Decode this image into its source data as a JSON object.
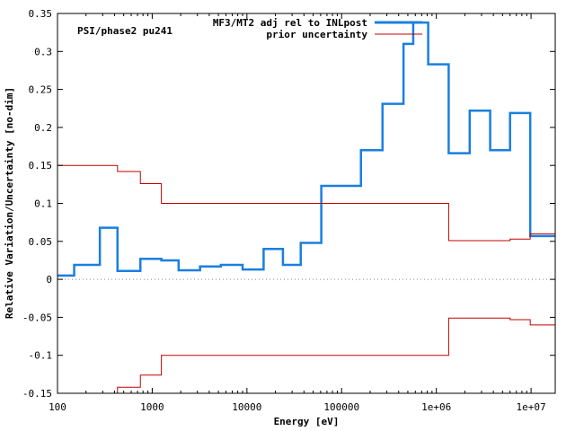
{
  "chart_data": {
    "type": "line",
    "title": "",
    "annotation": "PSI/phase2 pu241",
    "xlabel": "Energy [eV]",
    "ylabel": "Relative Variation/Uncertainty [no-dim]",
    "xscale": "log",
    "xlim": [
      100,
      18000000
    ],
    "ylim": [
      -0.15,
      0.35
    ],
    "grid": false,
    "zero_line": "dotted",
    "legend_position": "top-right",
    "x_ticks": [
      {
        "value": 100,
        "label": "100"
      },
      {
        "value": 1000,
        "label": "1000"
      },
      {
        "value": 10000,
        "label": "10000"
      },
      {
        "value": 100000,
        "label": "100000"
      },
      {
        "value": 1000000,
        "label": "1e+06"
      },
      {
        "value": 10000000,
        "label": "1e+07"
      }
    ],
    "y_ticks": [
      {
        "value": 0.35,
        "label": "0.35"
      },
      {
        "value": 0.3,
        "label": "0.3"
      },
      {
        "value": 0.25,
        "label": "0.25"
      },
      {
        "value": 0.2,
        "label": "0.2"
      },
      {
        "value": 0.15,
        "label": "0.15"
      },
      {
        "value": 0.1,
        "label": "0.1"
      },
      {
        "value": 0.05,
        "label": "0.05"
      },
      {
        "value": 0,
        "label": "0"
      },
      {
        "value": -0.05,
        "label": "-0.05"
      },
      {
        "value": -0.1,
        "label": "-0.1"
      },
      {
        "value": -0.15,
        "label": "-0.15"
      }
    ],
    "series": [
      {
        "name": "MF3/MT2 adj rel to INLpost",
        "color": "#1a7fe0",
        "style": "step",
        "points": [
          [
            100,
            0.005
          ],
          [
            150,
            0.019
          ],
          [
            280,
            0.068
          ],
          [
            430,
            0.011
          ],
          [
            750,
            0.027
          ],
          [
            1250,
            0.025
          ],
          [
            1900,
            0.012
          ],
          [
            3200,
            0.017
          ],
          [
            5300,
            0.019
          ],
          [
            9000,
            0.013
          ],
          [
            15000,
            0.04
          ],
          [
            24000,
            0.019
          ],
          [
            37000,
            0.048
          ],
          [
            61000,
            0.123
          ],
          [
            100000,
            0.123
          ],
          [
            100000,
            0.123
          ],
          [
            160000,
            0.17
          ],
          [
            270000,
            0.231
          ],
          [
            450000,
            0.31
          ],
          [
            570000,
            0.31
          ],
          [
            570000,
            0.338
          ],
          [
            820000,
            0.338
          ],
          [
            820000,
            0.283
          ],
          [
            1350000,
            0.283
          ],
          [
            1350000,
            0.166
          ],
          [
            2250000,
            0.166
          ],
          [
            2250000,
            0.222
          ],
          [
            3700000,
            0.222
          ],
          [
            3700000,
            0.17
          ],
          [
            6000000,
            0.17
          ],
          [
            6000000,
            0.219
          ],
          [
            9800000,
            0.219
          ],
          [
            9800000,
            0.057
          ],
          [
            18000000,
            0.057
          ]
        ]
      },
      {
        "name": "prior uncertainty",
        "color": "#c00000",
        "style": "step",
        "points": [
          [
            100,
            0.15
          ],
          [
            430,
            0.15
          ],
          [
            430,
            0.142
          ],
          [
            750,
            0.142
          ],
          [
            750,
            0.126
          ],
          [
            1250,
            0.126
          ],
          [
            1250,
            0.1
          ],
          [
            1350000,
            0.1
          ],
          [
            1350000,
            0.051
          ],
          [
            6000000,
            0.051
          ],
          [
            6000000,
            0.053
          ],
          [
            9800000,
            0.053
          ],
          [
            9800000,
            0.06
          ],
          [
            18000000,
            0.06
          ]
        ]
      },
      {
        "name": "",
        "color": "#c00000",
        "style": "step",
        "points": [
          [
            430,
            -0.15
          ],
          [
            430,
            -0.142
          ],
          [
            750,
            -0.142
          ],
          [
            750,
            -0.126
          ],
          [
            1250,
            -0.126
          ],
          [
            1250,
            -0.1
          ],
          [
            1350000,
            -0.1
          ],
          [
            1350000,
            -0.051
          ],
          [
            6000000,
            -0.051
          ],
          [
            6000000,
            -0.053
          ],
          [
            9800000,
            -0.053
          ],
          [
            9800000,
            -0.06
          ],
          [
            18000000,
            -0.06
          ]
        ]
      }
    ]
  }
}
